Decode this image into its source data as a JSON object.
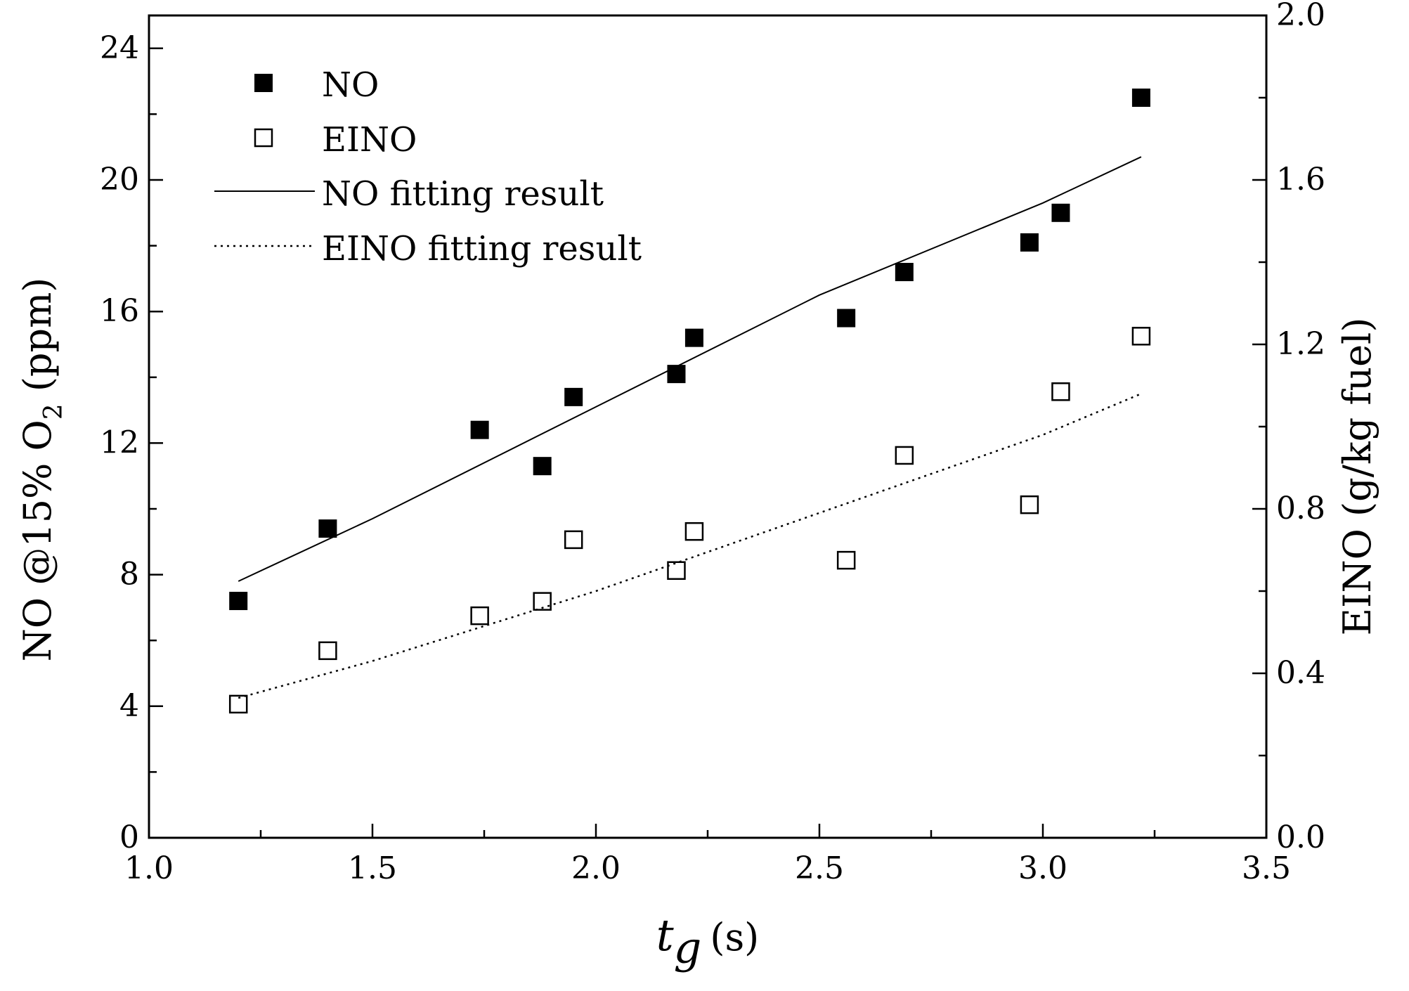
{
  "chart_data": {
    "type": "scatter",
    "title": "",
    "xlabel": {
      "main": "t",
      "sub": "g",
      "unit": "(s)"
    },
    "ylabel_left": {
      "pre": "NO @15% O",
      "sub": "2",
      "post": " (ppm)"
    },
    "ylabel_right": "EINO (g/kg fuel)",
    "xlim": [
      1.0,
      3.5
    ],
    "ylim_left": [
      0,
      25
    ],
    "ylim_right": [
      0.0,
      2.0
    ],
    "x_ticks": [
      1.0,
      1.5,
      2.0,
      2.5,
      3.0,
      3.5
    ],
    "x_tick_labels": [
      "1.0",
      "1.5",
      "2.0",
      "2.5",
      "3.0",
      "3.5"
    ],
    "y_left_ticks": [
      0,
      4,
      8,
      12,
      16,
      20,
      24
    ],
    "y_left_tick_labels": [
      "0",
      "4",
      "8",
      "12",
      "16",
      "20",
      "24"
    ],
    "y_right_ticks": [
      0.0,
      0.4,
      0.8,
      1.2,
      1.6,
      2.0
    ],
    "y_right_tick_labels": [
      "0.0",
      "0.4",
      "0.8",
      "1.2",
      "1.6",
      "2.0"
    ],
    "legend_position": "top-left",
    "series": [
      {
        "name": "NO",
        "kind": "scatter",
        "marker": "filled-square",
        "axis": "left",
        "x": [
          1.2,
          1.4,
          1.74,
          1.88,
          1.95,
          2.18,
          2.22,
          2.56,
          2.69,
          2.97,
          3.04,
          3.22
        ],
        "y": [
          7.2,
          9.4,
          12.4,
          11.3,
          13.4,
          14.1,
          15.2,
          15.8,
          17.2,
          18.1,
          19.0,
          22.5
        ]
      },
      {
        "name": "EINO",
        "kind": "scatter",
        "marker": "open-square",
        "axis": "right",
        "x": [
          1.2,
          1.4,
          1.74,
          1.88,
          1.95,
          2.18,
          2.22,
          2.56,
          2.69,
          2.97,
          3.04,
          3.22
        ],
        "y": [
          0.325,
          0.455,
          0.54,
          0.575,
          0.725,
          0.65,
          0.745,
          0.675,
          0.93,
          0.81,
          1.085,
          1.22
        ]
      },
      {
        "name": "NO fitting result",
        "kind": "line",
        "style": "solid",
        "axis": "left",
        "x": [
          1.2,
          1.5,
          2.0,
          2.5,
          3.0,
          3.22
        ],
        "y": [
          7.8,
          9.7,
          13.1,
          16.5,
          19.3,
          20.7
        ]
      },
      {
        "name": "EINO fitting result",
        "kind": "line",
        "style": "dotted",
        "axis": "right",
        "x": [
          1.2,
          1.5,
          2.0,
          2.5,
          3.0,
          3.22
        ],
        "y": [
          0.34,
          0.43,
          0.6,
          0.79,
          0.98,
          1.08
        ]
      }
    ]
  }
}
